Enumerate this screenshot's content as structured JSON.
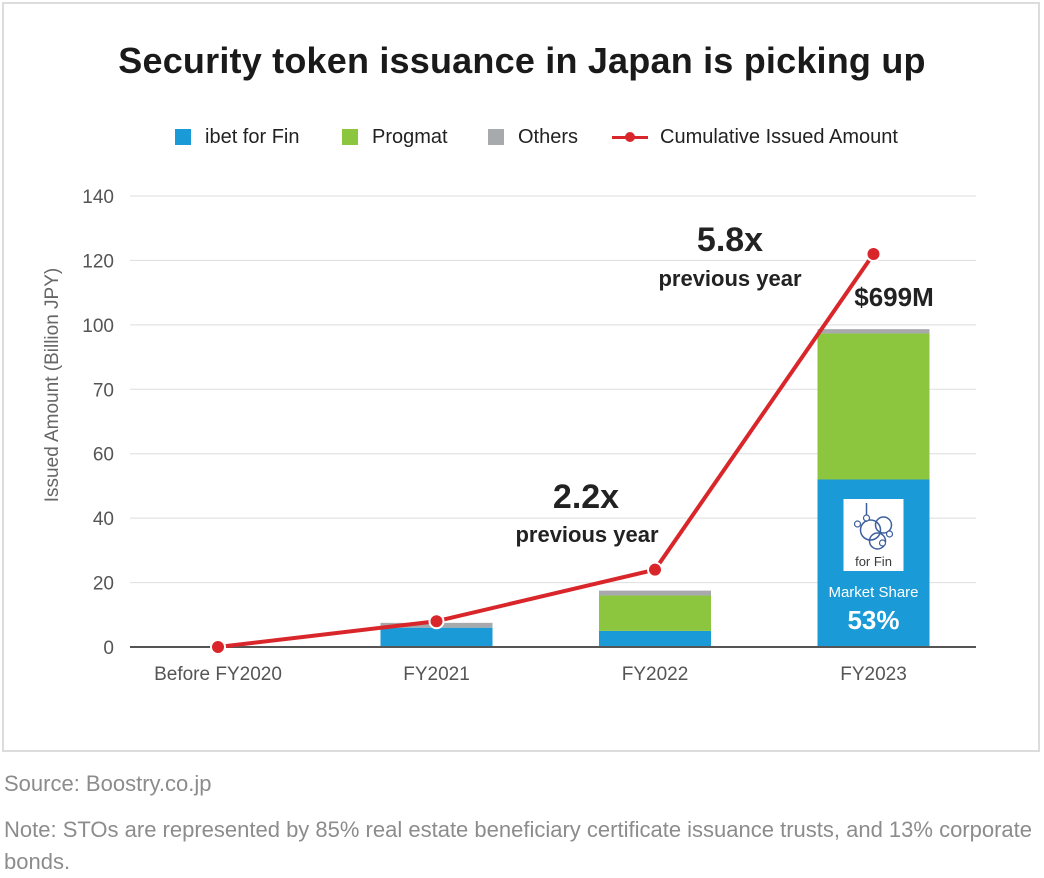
{
  "title": "Security token issuance in Japan is picking up",
  "legend": [
    {
      "label": "ibet for Fin",
      "color": "#1a9ad6"
    },
    {
      "label": "Progmat",
      "color": "#8cc63f"
    },
    {
      "label": "Others",
      "color": "#a7a9ac"
    },
    {
      "label": "Cumulative Issued Amount",
      "color": "#d9262b"
    }
  ],
  "chart_data": {
    "type": "bar",
    "stacked": true,
    "title": "Security token issuance in Japan is picking up",
    "ylabel": "Issued Amount (Billion JPY)",
    "ylim": [
      0,
      140
    ],
    "yticks": [
      "0",
      "20",
      "40",
      "60",
      "70",
      "100",
      "120",
      "140"
    ],
    "categories": [
      "Before FY2020",
      "FY2021",
      "FY2022",
      "FY2023"
    ],
    "series": [
      {
        "name": "ibet for Fin",
        "color": "#1a9ad6",
        "values": [
          0,
          6,
          5,
          52
        ]
      },
      {
        "name": "Progmat",
        "color": "#8cc63f",
        "values": [
          0,
          0,
          11,
          44
        ]
      },
      {
        "name": "Others",
        "color": "#a7a9ac",
        "values": [
          0,
          1.5,
          1.5,
          2
        ]
      }
    ],
    "line": {
      "name": "Cumulative Issued Amount",
      "color": "#d9262b",
      "values": [
        0,
        8,
        24,
        122
      ]
    },
    "annotations": {
      "growth_fy2022_value": "2.2x",
      "growth_fy2022_text": "previous year",
      "growth_fy2023_value": "5.8x",
      "growth_fy2023_text": "previous year",
      "total_fy2023": "$699M",
      "logo_text": "for Fin",
      "market_share_label": "Market Share",
      "market_share_value": "53%"
    },
    "grid": true,
    "legend_position": "top"
  },
  "source": "Source: Boostry.co.jp",
  "note": "Note: STOs are represented by 85% real estate beneficiary certificate issuance trusts, and 13% corporate bonds."
}
